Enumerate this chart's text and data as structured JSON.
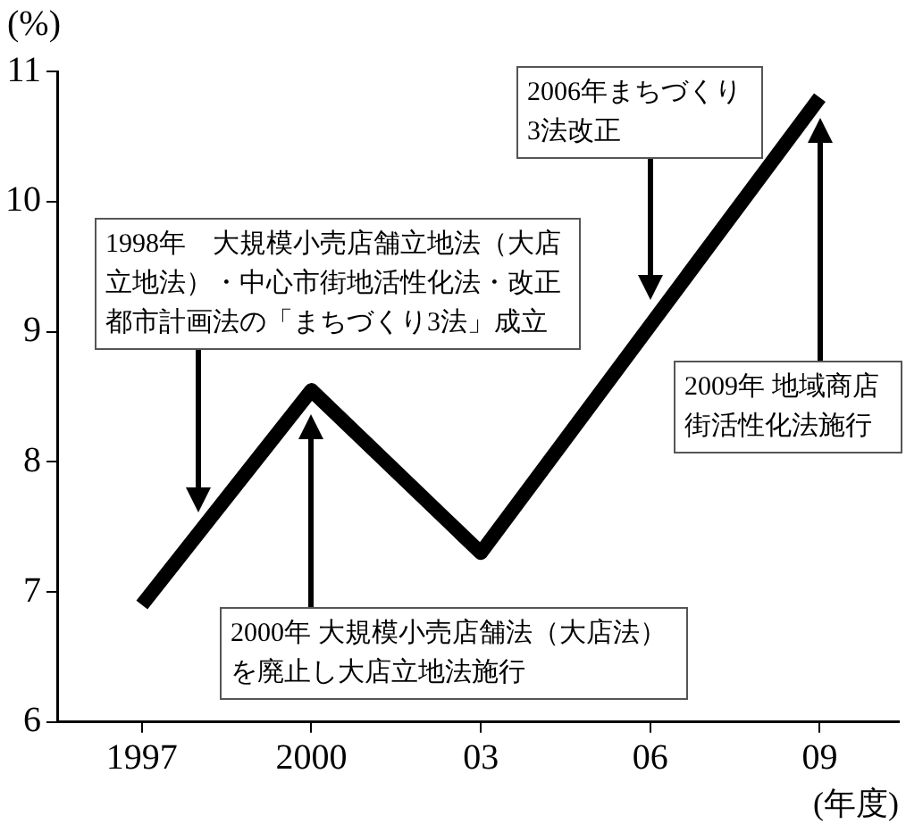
{
  "chart_data": {
    "type": "line",
    "ylabel": "(%)",
    "xlabel": "(年度)",
    "x": [
      1997,
      2000,
      2003,
      2009
    ],
    "series": [
      {
        "color": "#000000",
        "values": [
          6.9,
          8.55,
          7.3,
          10.8
        ]
      }
    ],
    "xlim": [
      1995.5,
      2010.4
    ],
    "xticks": [
      {
        "value": 1997,
        "label": "1997"
      },
      {
        "value": 2000,
        "label": "2000"
      },
      {
        "value": 2003,
        "label": "03"
      },
      {
        "value": 2006,
        "label": "06"
      },
      {
        "value": 2009,
        "label": "09"
      }
    ],
    "ylim": [
      6,
      11
    ],
    "yticks": [
      6,
      7,
      8,
      9,
      10,
      11
    ],
    "grid": false,
    "legend": false,
    "marker": "none",
    "line_style": "solid",
    "annotations": [
      {
        "text": "1998年　大規模小売店舗立地法（大店立地法）・中心市街地活性化法・改正都市計画法の「まちづくり3法」成立"
      },
      {
        "text": "2000年 大規模小売店舗法（大店法）を廃止し大店立地法施行"
      },
      {
        "text": "2006年まちづくり3法改正"
      },
      {
        "text": "2009年 地域商店街活性化法施行"
      }
    ]
  }
}
